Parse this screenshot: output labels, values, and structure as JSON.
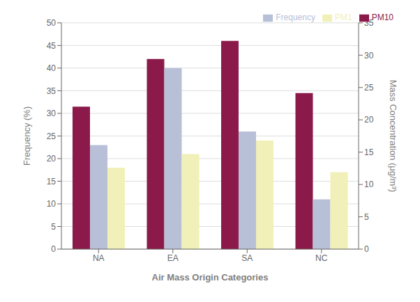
{
  "chart_data": {
    "type": "bar",
    "categories": [
      "NA",
      "EA",
      "SA",
      "NC"
    ],
    "series": [
      {
        "name": "PM10",
        "color": "#8b1a4a",
        "values": [
          31.5,
          42,
          46,
          34.5
        ]
      },
      {
        "name": "Frequency",
        "color": "#b8c0d8",
        "values": [
          23,
          40,
          26,
          11
        ]
      },
      {
        "name": "PM1",
        "color": "#f0f0b8",
        "values": [
          18,
          21,
          24,
          17
        ]
      }
    ],
    "xlabel": "Air Mass Origin Categories",
    "ylabel": "Frequency (%)",
    "y2label": "Mass Concentration (μg/m³)",
    "ylim": [
      0,
      50
    ],
    "yticks": [
      0,
      5,
      10,
      15,
      20,
      25,
      30,
      35,
      40,
      45,
      50
    ],
    "y2lim": [
      0,
      35
    ],
    "y2ticks": [
      0,
      5,
      10,
      15,
      20,
      25,
      30,
      35
    ],
    "grid": true,
    "legend": "upper right"
  }
}
